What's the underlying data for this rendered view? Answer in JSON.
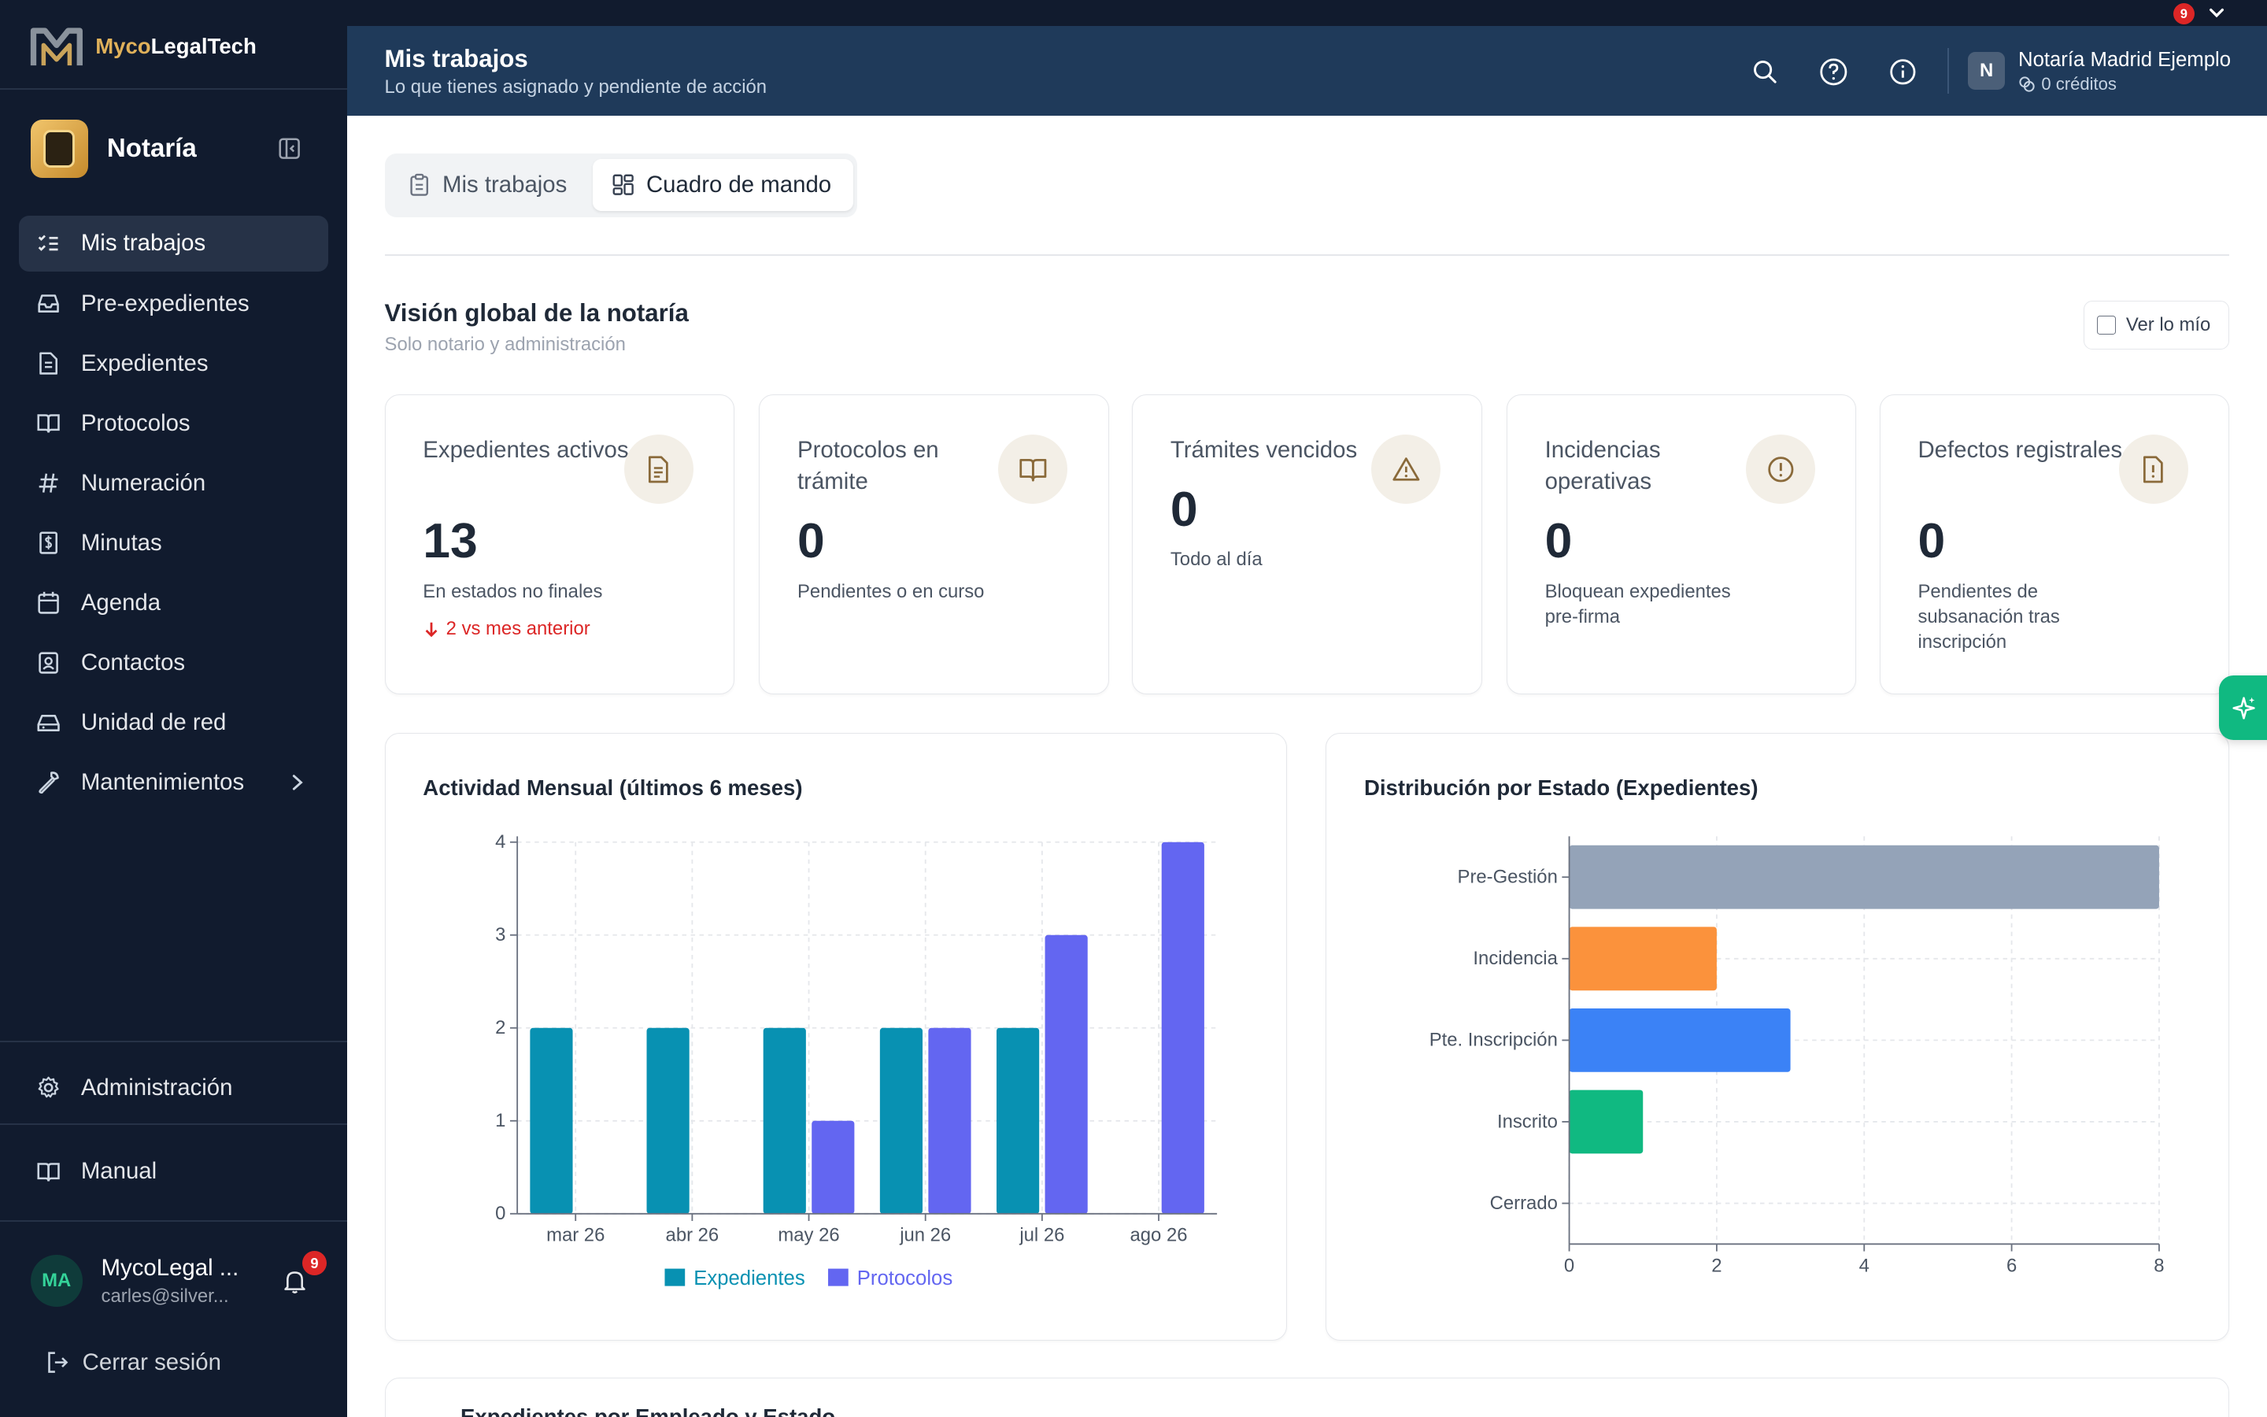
{
  "brand": {
    "name_part1": "Myco",
    "name_part2": "LegalTech"
  },
  "workspace": {
    "name": "Notaría"
  },
  "sidebar": {
    "items": [
      {
        "label": "Mis trabajos",
        "icon": "list-checks-icon"
      },
      {
        "label": "Pre-expedientes",
        "icon": "inbox-icon"
      },
      {
        "label": "Expedientes",
        "icon": "file-text-icon"
      },
      {
        "label": "Protocolos",
        "icon": "book-icon"
      },
      {
        "label": "Numeración",
        "icon": "hash-icon"
      },
      {
        "label": "Minutas",
        "icon": "receipt-icon"
      },
      {
        "label": "Agenda",
        "icon": "calendar-icon"
      },
      {
        "label": "Contactos",
        "icon": "contact-icon"
      },
      {
        "label": "Unidad de red",
        "icon": "hard-drive-icon"
      },
      {
        "label": "Mantenimientos",
        "icon": "wrench-icon"
      }
    ],
    "admin_label": "Administración",
    "manual_label": "Manual"
  },
  "user": {
    "initials": "MA",
    "name": "MycoLegal ...",
    "email": "carles@silver...",
    "notifications": "9",
    "logout_label": "Cerrar sesión"
  },
  "topbar": {
    "notifications": "9"
  },
  "header": {
    "title": "Mis trabajos",
    "subtitle": "Lo que tienes asignado y pendiente de acción",
    "org_initial": "N",
    "org_name": "Notaría Madrid Ejemplo",
    "org_credits": "0 créditos"
  },
  "tabs": [
    {
      "label": "Mis trabajos",
      "icon": "clipboard-icon"
    },
    {
      "label": "Cuadro de mando",
      "icon": "layout-dashboard-icon"
    }
  ],
  "section": {
    "title": "Visión global de la notaría",
    "subtitle": "Solo notario y administración",
    "toggle_label": "Ver lo mío"
  },
  "kpis": [
    {
      "label": "Expedientes activos",
      "value": "13",
      "sub": "En estados no finales",
      "trend": "2 vs mes anterior",
      "icon": "file-text-icon"
    },
    {
      "label": "Protocolos en trámite",
      "value": "0",
      "sub": "Pendientes o en curso",
      "icon": "book-open-icon"
    },
    {
      "label": "Trámites vencidos",
      "value": "0",
      "sub": "Todo al día",
      "icon": "alert-triangle-icon"
    },
    {
      "label": "Incidencias operativas",
      "value": "0",
      "sub": "Bloquean expedientes pre-firma",
      "icon": "alert-circle-icon"
    },
    {
      "label": "Defectos registrales",
      "value": "0",
      "sub": "Pendientes de subsanación tras inscripción",
      "icon": "file-warning-icon"
    }
  ],
  "colors": {
    "expedientes": "#0891b2",
    "protocolos": "#6366f1",
    "pre_gestion": "#94a3b8",
    "incidencia": "#fb923c",
    "pte_inscripcion": "#3b82f6",
    "inscrito": "#10b981",
    "cerrado": "#9ca3af"
  },
  "chart_data": [
    {
      "type": "bar",
      "title": "Actividad Mensual (últimos 6 meses)",
      "categories": [
        "mar 26",
        "abr 26",
        "may 26",
        "jun 26",
        "jul 26",
        "ago 26"
      ],
      "series": [
        {
          "name": "Expedientes",
          "values": [
            2,
            2,
            2,
            2,
            2,
            0
          ]
        },
        {
          "name": "Protocolos",
          "values": [
            0,
            0,
            1,
            2,
            3,
            4
          ]
        }
      ],
      "ylim": [
        0,
        4
      ],
      "yticks": [
        0,
        1,
        2,
        3,
        4
      ],
      "grid": true,
      "legend": "bottom"
    },
    {
      "type": "bar",
      "orientation": "horizontal",
      "title": "Distribución por Estado (Expedientes)",
      "categories": [
        "Pre-Gestión",
        "Incidencia",
        "Pte. Inscripción",
        "Inscrito",
        "Cerrado"
      ],
      "values": [
        8,
        2,
        3,
        1,
        0
      ],
      "xlim": [
        0,
        8
      ],
      "xticks": [
        0,
        2,
        4,
        6,
        8
      ],
      "grid": true
    }
  ],
  "bottom_card": {
    "title": "Expedientes por Empleado y Estado"
  }
}
